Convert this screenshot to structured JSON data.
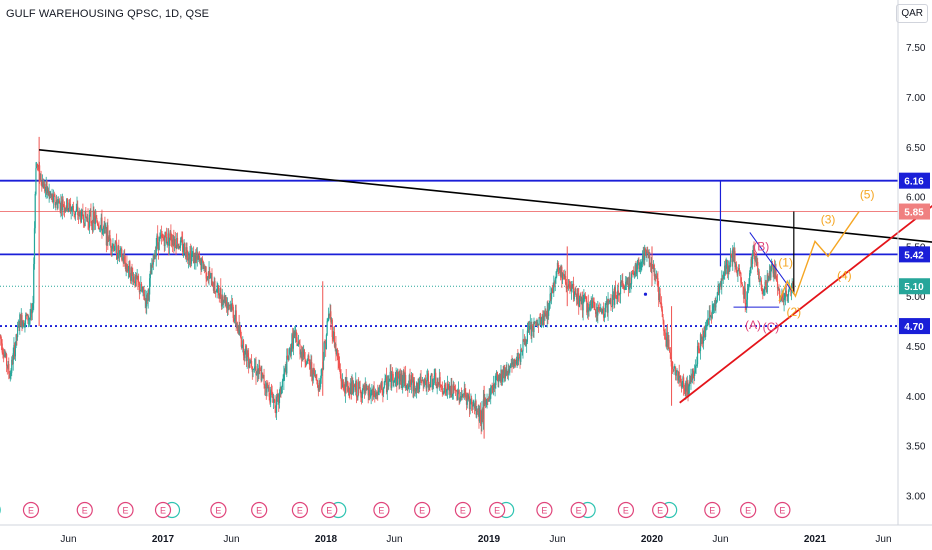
{
  "header": {
    "title": "GULF WAREHOUSING QPSC, 1D, QSE",
    "currency": "QAR"
  },
  "colors": {
    "up": "#26a69a",
    "down": "#ef5350",
    "hline": "#1a1fd8",
    "trend_black": "#000000",
    "support_red": "#e4141a",
    "wave_orange": "#f5a623",
    "wave_red": "#e0457b",
    "price_label": "#26a69a",
    "resistance_label": "#f08080"
  },
  "chart_data": {
    "type": "candlestick",
    "title": "GULF WAREHOUSING QPSC, 1D, QSE",
    "ylim": [
      2.75,
      7.9
    ],
    "y_scale": "linear",
    "y_ticks": [
      "7.50",
      "7.00",
      "6.50",
      "6.00",
      "5.50",
      "5.00",
      "4.50",
      "4.00",
      "3.50",
      "3.00"
    ],
    "x_ticks": [
      {
        "label": "Jun",
        "t": 2016.42
      },
      {
        "label": "2017",
        "t": 2017.0
      },
      {
        "label": "Jun",
        "t": 2017.42
      },
      {
        "label": "2018",
        "t": 2018.0
      },
      {
        "label": "Jun",
        "t": 2018.42
      },
      {
        "label": "2019",
        "t": 2019.0
      },
      {
        "label": "Jun",
        "t": 2019.42
      },
      {
        "label": "2020",
        "t": 2020.0
      },
      {
        "label": "Jun",
        "t": 2020.42
      },
      {
        "label": "2021",
        "t": 2021.0
      },
      {
        "label": "Jun",
        "t": 2021.42
      }
    ],
    "price_path": [
      [
        2016.0,
        4.6
      ],
      [
        2016.06,
        4.2
      ],
      [
        2016.12,
        4.75
      ],
      [
        2016.2,
        4.8
      ],
      [
        2016.22,
        6.35
      ],
      [
        2016.27,
        6.1
      ],
      [
        2016.33,
        5.95
      ],
      [
        2016.42,
        5.9
      ],
      [
        2016.5,
        5.8
      ],
      [
        2016.6,
        5.75
      ],
      [
        2016.7,
        5.5
      ],
      [
        2016.8,
        5.25
      ],
      [
        2016.9,
        4.95
      ],
      [
        2016.96,
        5.55
      ],
      [
        2017.05,
        5.6
      ],
      [
        2017.15,
        5.45
      ],
      [
        2017.25,
        5.3
      ],
      [
        2017.33,
        5.05
      ],
      [
        2017.42,
        4.9
      ],
      [
        2017.5,
        4.45
      ],
      [
        2017.6,
        4.2
      ],
      [
        2017.7,
        3.9
      ],
      [
        2017.8,
        4.6
      ],
      [
        2017.9,
        4.3
      ],
      [
        2017.96,
        4.1
      ],
      [
        2018.02,
        4.85
      ],
      [
        2018.1,
        4.1
      ],
      [
        2018.2,
        4.05
      ],
      [
        2018.3,
        4.0
      ],
      [
        2018.42,
        4.2
      ],
      [
        2018.55,
        4.1
      ],
      [
        2018.65,
        4.15
      ],
      [
        2018.75,
        4.05
      ],
      [
        2018.85,
        4.0
      ],
      [
        2018.95,
        3.8
      ],
      [
        2019.05,
        4.2
      ],
      [
        2019.15,
        4.3
      ],
      [
        2019.25,
        4.65
      ],
      [
        2019.35,
        4.8
      ],
      [
        2019.42,
        5.3
      ],
      [
        2019.5,
        5.05
      ],
      [
        2019.6,
        4.9
      ],
      [
        2019.7,
        4.85
      ],
      [
        2019.8,
        5.05
      ],
      [
        2019.9,
        5.25
      ],
      [
        2019.96,
        5.45
      ],
      [
        2020.02,
        5.25
      ],
      [
        2020.08,
        4.6
      ],
      [
        2020.15,
        4.2
      ],
      [
        2020.22,
        4.05
      ],
      [
        2020.3,
        4.55
      ],
      [
        2020.38,
        4.9
      ],
      [
        2020.42,
        5.15
      ],
      [
        2020.5,
        5.4
      ],
      [
        2020.58,
        4.95
      ],
      [
        2020.62,
        5.5
      ],
      [
        2020.68,
        5.0
      ],
      [
        2020.74,
        5.3
      ],
      [
        2020.8,
        4.95
      ],
      [
        2020.87,
        5.1
      ]
    ],
    "highlight_candles": [
      {
        "t": 2016.24,
        "low": 4.7,
        "high": 6.6
      },
      {
        "t": 2017.98,
        "low": 4.0,
        "high": 5.15
      },
      {
        "t": 2018.97,
        "low": 3.57,
        "high": 4.1
      },
      {
        "t": 2019.48,
        "low": 4.9,
        "high": 5.5
      },
      {
        "t": 2020.0,
        "low": 5.1,
        "high": 5.5
      },
      {
        "t": 2020.12,
        "low": 3.9,
        "high": 4.9
      }
    ],
    "horizontal_lines": [
      {
        "value": 6.16,
        "label": "6.16",
        "style": "solid",
        "color": "#1a1fd8",
        "width": 1.8
      },
      {
        "value": 5.85,
        "label": "5.85",
        "style": "solid",
        "color": "#f08080",
        "width": 1
      },
      {
        "value": 5.42,
        "label": "5.42",
        "style": "solid",
        "color": "#1a1fd8",
        "width": 1.8
      },
      {
        "value": 5.1,
        "label": "5.10",
        "style": "dotted",
        "color": "#26a69a",
        "width": 1
      },
      {
        "value": 4.7,
        "label": "4.70",
        "style": "dotted",
        "color": "#1a1fd8",
        "width": 1.8
      }
    ],
    "trendlines": [
      {
        "from": [
          2016.24,
          6.47
        ],
        "to": [
          2021.74,
          5.54
        ],
        "color": "#000000",
        "width": 1.6
      },
      {
        "from": [
          2020.17,
          3.93
        ],
        "to": [
          2021.73,
          5.92
        ],
        "color": "#e4141a",
        "width": 1.8
      },
      {
        "from": [
          2020.42,
          6.16
        ],
        "to": [
          2020.42,
          5.3
        ],
        "color": "#1a1fd8",
        "width": 1.2
      },
      {
        "from": [
          2020.87,
          5.85
        ],
        "to": [
          2020.87,
          5.02
        ],
        "color": "#000000",
        "width": 1.2
      },
      {
        "from": [
          2020.6,
          5.64
        ],
        "to": [
          2020.86,
          5.05
        ],
        "color": "#1a1fd8",
        "width": 1
      },
      {
        "from": [
          2020.5,
          4.89
        ],
        "to": [
          2020.78,
          4.89
        ],
        "color": "#1a1fd8",
        "width": 1
      }
    ],
    "waves": [
      {
        "points": [
          [
            2020.78,
            4.95
          ],
          [
            2020.83,
            5.15
          ],
          [
            2020.88,
            5.0
          ],
          [
            2021.0,
            5.55
          ],
          [
            2021.08,
            5.4
          ],
          [
            2021.27,
            5.85
          ]
        ],
        "color": "#f5a623"
      }
    ],
    "wave_labels": [
      {
        "text": "(B)",
        "t": 2020.67,
        "v": 5.5,
        "color": "#e0457b"
      },
      {
        "text": "(A)",
        "t": 2020.62,
        "v": 4.71,
        "color": "#e0457b"
      },
      {
        "text": "(C)",
        "t": 2020.73,
        "v": 4.69,
        "color": "#e0457b"
      },
      {
        "text": "(1)",
        "t": 2020.82,
        "v": 5.34,
        "color": "#f5a623"
      },
      {
        "text": "(2)",
        "t": 2020.87,
        "v": 4.84,
        "color": "#f5a623"
      },
      {
        "text": "(3)",
        "t": 2021.08,
        "v": 5.77,
        "color": "#f5a623"
      },
      {
        "text": "(4)",
        "t": 2021.18,
        "v": 5.21,
        "color": "#f5a623"
      },
      {
        "text": "(5)",
        "t": 2021.32,
        "v": 6.02,
        "color": "#f5a623"
      }
    ],
    "markers": [
      {
        "t": 2019.96,
        "v": 5.02,
        "color": "#1a1fd8"
      }
    ],
    "earnings_events": [
      {
        "t": 2015.9,
        "dividend": true
      },
      {
        "t": 2016.19,
        "dividend": false
      },
      {
        "t": 2016.52,
        "dividend": false
      },
      {
        "t": 2016.77,
        "dividend": false
      },
      {
        "t": 2017.0,
        "dividend": true
      },
      {
        "t": 2017.34,
        "dividend": false
      },
      {
        "t": 2017.59,
        "dividend": false
      },
      {
        "t": 2017.84,
        "dividend": false
      },
      {
        "t": 2018.02,
        "dividend": true
      },
      {
        "t": 2018.34,
        "dividend": false
      },
      {
        "t": 2018.59,
        "dividend": false
      },
      {
        "t": 2018.84,
        "dividend": false
      },
      {
        "t": 2019.05,
        "dividend": true
      },
      {
        "t": 2019.34,
        "dividend": false
      },
      {
        "t": 2019.55,
        "dividend": true
      },
      {
        "t": 2019.84,
        "dividend": false
      },
      {
        "t": 2020.05,
        "dividend": true
      },
      {
        "t": 2020.37,
        "dividend": false
      },
      {
        "t": 2020.59,
        "dividend": false
      },
      {
        "t": 2020.8,
        "dividend": false
      }
    ],
    "earnings_label": "E"
  }
}
